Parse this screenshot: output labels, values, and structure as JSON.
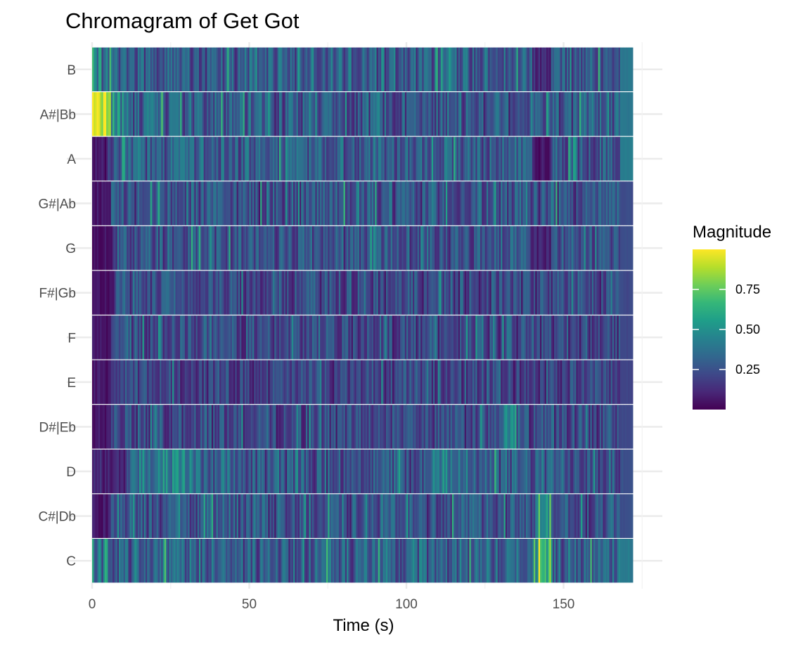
{
  "chart_data": {
    "type": "heatmap",
    "title": "Chromagram of Get Got",
    "xlabel": "Time (s)",
    "ylabel": "",
    "xlim": [
      0,
      173
    ],
    "x_ticks": [
      0,
      50,
      100,
      150
    ],
    "y_categories": [
      "C",
      "C#|Db",
      "D",
      "D#|Eb",
      "E",
      "F",
      "F#|Gb",
      "G",
      "G#|Ab",
      "A",
      "A#|Bb",
      "B"
    ],
    "time_end": 172,
    "grid": true,
    "legend": {
      "title": "Magnitude",
      "placement": "right",
      "ticks": [
        0.25,
        0.5,
        0.75
      ],
      "tick_labels": [
        "0.25",
        "0.50",
        "0.75"
      ],
      "range": [
        0.0,
        1.0
      ]
    },
    "colormap": [
      "#440154",
      "#482878",
      "#3e4989",
      "#31688e",
      "#26828e",
      "#1f9e89",
      "#35b779",
      "#6ece58",
      "#b5de2b",
      "#fde725"
    ],
    "series": [
      {
        "name": "C",
        "segments": [
          {
            "start": 0,
            "end": 6,
            "mean": 0.38,
            "spread": 0.35
          },
          {
            "start": 6,
            "end": 140,
            "mean": 0.3,
            "spread": 0.22
          },
          {
            "start": 140,
            "end": 146,
            "mean": 0.62,
            "spread": 0.28
          },
          {
            "start": 146,
            "end": 168,
            "mean": 0.32,
            "spread": 0.22
          },
          {
            "start": 168,
            "end": 172,
            "mean": 0.4,
            "spread": 0.02
          }
        ]
      },
      {
        "name": "C#|Db",
        "segments": [
          {
            "start": 0,
            "end": 6,
            "mean": 0.08,
            "spread": 0.08
          },
          {
            "start": 6,
            "end": 142,
            "mean": 0.26,
            "spread": 0.2
          },
          {
            "start": 142,
            "end": 146,
            "mean": 0.55,
            "spread": 0.3
          },
          {
            "start": 146,
            "end": 168,
            "mean": 0.24,
            "spread": 0.18
          },
          {
            "start": 168,
            "end": 172,
            "mean": 0.24,
            "spread": 0.02
          }
        ]
      },
      {
        "name": "D",
        "segments": [
          {
            "start": 0,
            "end": 11,
            "mean": 0.1,
            "spread": 0.1
          },
          {
            "start": 11,
            "end": 34,
            "mean": 0.4,
            "spread": 0.22
          },
          {
            "start": 34,
            "end": 108,
            "mean": 0.27,
            "spread": 0.2
          },
          {
            "start": 108,
            "end": 122,
            "mean": 0.38,
            "spread": 0.22
          },
          {
            "start": 122,
            "end": 168,
            "mean": 0.28,
            "spread": 0.22
          },
          {
            "start": 168,
            "end": 172,
            "mean": 0.24,
            "spread": 0.02
          }
        ]
      },
      {
        "name": "D#|Eb",
        "segments": [
          {
            "start": 0,
            "end": 6,
            "mean": 0.06,
            "spread": 0.06
          },
          {
            "start": 6,
            "end": 130,
            "mean": 0.22,
            "spread": 0.18
          },
          {
            "start": 130,
            "end": 136,
            "mean": 0.42,
            "spread": 0.25
          },
          {
            "start": 136,
            "end": 168,
            "mean": 0.22,
            "spread": 0.18
          },
          {
            "start": 168,
            "end": 172,
            "mean": 0.22,
            "spread": 0.02
          }
        ]
      },
      {
        "name": "E",
        "segments": [
          {
            "start": 0,
            "end": 6,
            "mean": 0.06,
            "spread": 0.06
          },
          {
            "start": 6,
            "end": 168,
            "mean": 0.2,
            "spread": 0.16
          },
          {
            "start": 168,
            "end": 172,
            "mean": 0.2,
            "spread": 0.02
          }
        ]
      },
      {
        "name": "F",
        "segments": [
          {
            "start": 0,
            "end": 6,
            "mean": 0.06,
            "spread": 0.06
          },
          {
            "start": 6,
            "end": 168,
            "mean": 0.22,
            "spread": 0.18
          },
          {
            "start": 168,
            "end": 172,
            "mean": 0.22,
            "spread": 0.02
          }
        ]
      },
      {
        "name": "F#|Gb",
        "segments": [
          {
            "start": 0,
            "end": 7,
            "mean": 0.05,
            "spread": 0.05
          },
          {
            "start": 7,
            "end": 168,
            "mean": 0.22,
            "spread": 0.18
          },
          {
            "start": 168,
            "end": 172,
            "mean": 0.22,
            "spread": 0.02
          }
        ]
      },
      {
        "name": "G",
        "segments": [
          {
            "start": 0,
            "end": 7,
            "mean": 0.05,
            "spread": 0.05
          },
          {
            "start": 7,
            "end": 140,
            "mean": 0.26,
            "spread": 0.2
          },
          {
            "start": 140,
            "end": 146,
            "mean": 0.1,
            "spread": 0.1
          },
          {
            "start": 146,
            "end": 168,
            "mean": 0.24,
            "spread": 0.18
          },
          {
            "start": 168,
            "end": 172,
            "mean": 0.24,
            "spread": 0.02
          }
        ]
      },
      {
        "name": "G#|Ab",
        "segments": [
          {
            "start": 0,
            "end": 6,
            "mean": 0.06,
            "spread": 0.06
          },
          {
            "start": 6,
            "end": 168,
            "mean": 0.25,
            "spread": 0.2
          },
          {
            "start": 168,
            "end": 172,
            "mean": 0.24,
            "spread": 0.02
          }
        ]
      },
      {
        "name": "A",
        "segments": [
          {
            "start": 0,
            "end": 5,
            "mean": 0.06,
            "spread": 0.06
          },
          {
            "start": 5,
            "end": 140,
            "mean": 0.3,
            "spread": 0.2
          },
          {
            "start": 140,
            "end": 146,
            "mean": 0.08,
            "spread": 0.08
          },
          {
            "start": 146,
            "end": 168,
            "mean": 0.28,
            "spread": 0.2
          },
          {
            "start": 168,
            "end": 172,
            "mean": 0.42,
            "spread": 0.02
          }
        ]
      },
      {
        "name": "A#|Bb",
        "segments": [
          {
            "start": 0,
            "end": 6,
            "mean": 0.92,
            "spread": 0.18
          },
          {
            "start": 6,
            "end": 10,
            "mean": 0.45,
            "spread": 0.3
          },
          {
            "start": 10,
            "end": 168,
            "mean": 0.28,
            "spread": 0.22
          },
          {
            "start": 168,
            "end": 172,
            "mean": 0.4,
            "spread": 0.02
          }
        ]
      },
      {
        "name": "B",
        "segments": [
          {
            "start": 0,
            "end": 6,
            "mean": 0.45,
            "spread": 0.4
          },
          {
            "start": 6,
            "end": 140,
            "mean": 0.3,
            "spread": 0.22
          },
          {
            "start": 140,
            "end": 146,
            "mean": 0.1,
            "spread": 0.1
          },
          {
            "start": 146,
            "end": 168,
            "mean": 0.26,
            "spread": 0.2
          },
          {
            "start": 168,
            "end": 172,
            "mean": 0.4,
            "spread": 0.02
          }
        ]
      }
    ]
  }
}
